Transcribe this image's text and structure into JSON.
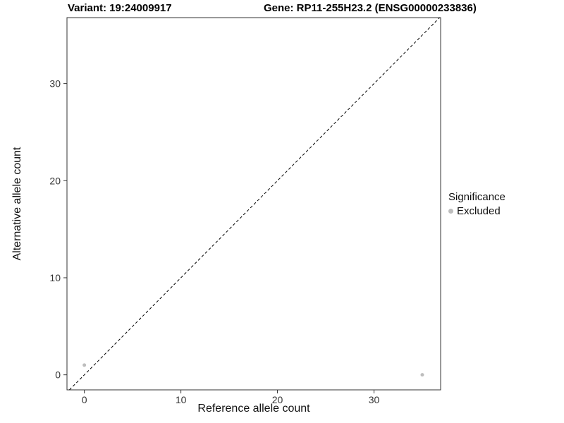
{
  "header": {
    "variant_title": "Variant: 19:24009917",
    "gene_title": "Gene: RP11-255H23.2 (ENSG00000233836)"
  },
  "chart_data": {
    "type": "scatter",
    "title_left": "Variant: 19:24009917",
    "title_right": "Gene: RP11-255H23.2 (ENSG00000233836)",
    "xlabel": "Reference allele count",
    "ylabel": "Alternative allele count",
    "xlim": [
      -1.8,
      36.9
    ],
    "ylim": [
      -1.55,
      36.8
    ],
    "xticks": [
      0,
      10,
      20,
      30
    ],
    "yticks": [
      0,
      10,
      20,
      30
    ],
    "grid": false,
    "panel_border": true,
    "identity_line": {
      "slope": 1,
      "intercept": 0,
      "style": "dashed",
      "color": "#000000"
    },
    "series": [
      {
        "name": "Excluded",
        "color": "#bdbdbd",
        "points": [
          [
            0,
            1
          ],
          [
            35,
            0
          ]
        ]
      }
    ],
    "legend": {
      "title": "Significance",
      "position": "right",
      "entries": [
        {
          "label": "Excluded",
          "color": "#bdbdbd"
        }
      ]
    }
  }
}
